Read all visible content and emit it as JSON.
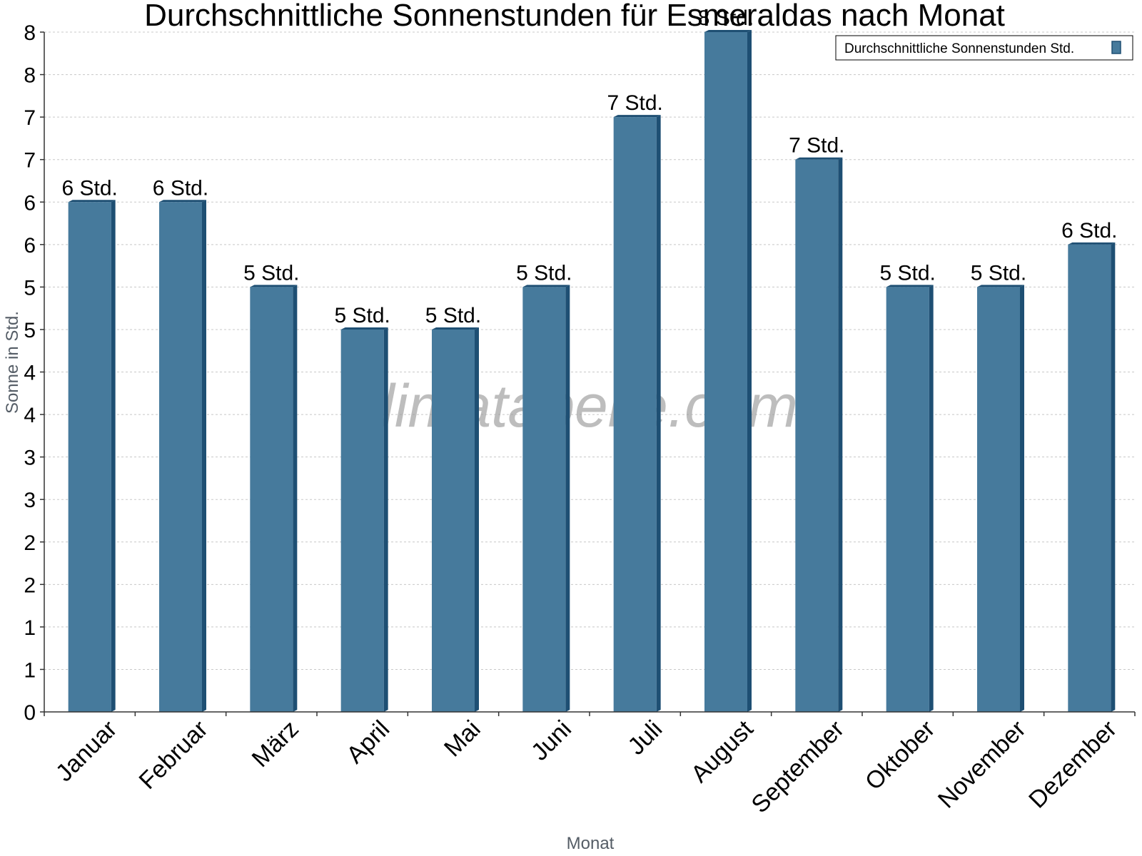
{
  "chart_data": {
    "type": "bar",
    "title": "Durchschnittliche Sonnenstunden für Esmeraldas nach Monat",
    "xlabel": "Monat",
    "ylabel": "Sonne in Std.",
    "categories": [
      "Januar",
      "Februar",
      "März",
      "April",
      "Mai",
      "Juni",
      "Juli",
      "August",
      "September",
      "Oktober",
      "November",
      "Dezember"
    ],
    "series": [
      {
        "name": "Durchschnittliche Sonnenstunden Std.",
        "values": [
          6,
          6,
          5,
          4.5,
          4.5,
          5,
          7,
          8,
          6.5,
          5,
          5,
          5.5
        ],
        "data_labels": [
          "6 Std.",
          "6 Std.",
          "5 Std.",
          "5 Std.",
          "5 Std.",
          "5 Std.",
          "7 Std.",
          "8 Std.",
          "7 Std.",
          "5 Std.",
          "5 Std.",
          "6 Std."
        ]
      }
    ],
    "y_tick_labels": [
      "0",
      "1",
      "1",
      "2",
      "2",
      "3",
      "3",
      "4",
      "4",
      "5",
      "5",
      "6",
      "6",
      "7",
      "7",
      "8",
      "8"
    ],
    "ylim": [
      0,
      8
    ],
    "grid": true,
    "legend_position": "top-right",
    "watermark": "klimatabelle.com",
    "colors": {
      "bar": "#467a9c",
      "bar_side": "#1e4f73",
      "grid": "#c8c8c8",
      "axis": "#333333"
    }
  }
}
